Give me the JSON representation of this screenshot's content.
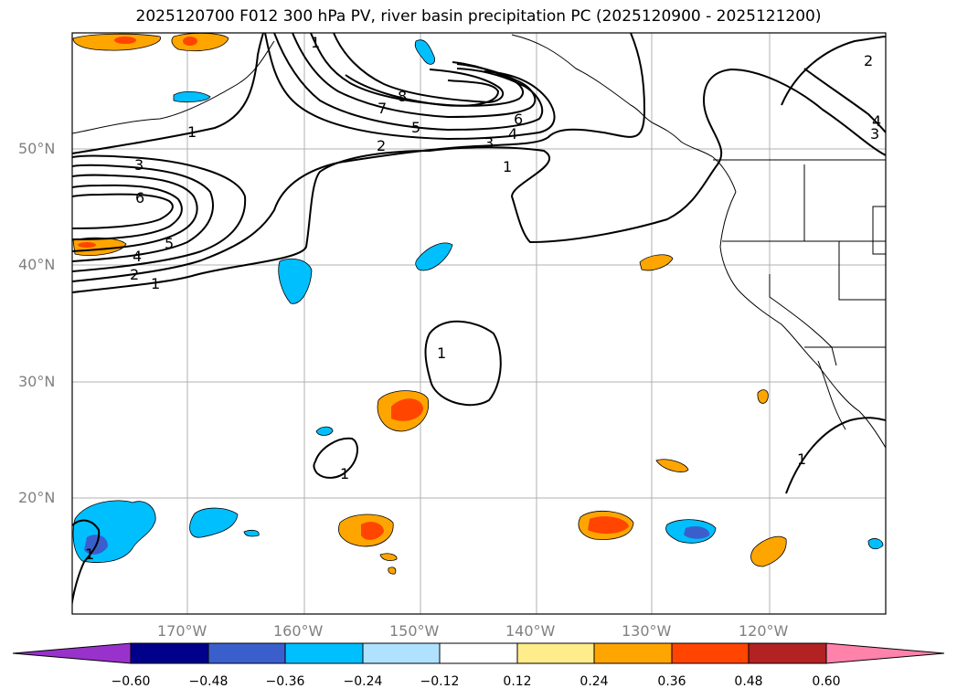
{
  "title": "2025120700 F012 300 hPa PV, river basin precipitation PC (2025120900 - 2025121200)",
  "lat_labels": [
    "50°N",
    "40°N",
    "30°N",
    "20°N"
  ],
  "lon_labels": [
    "170°W",
    "160°W",
    "150°W",
    "140°W",
    "130°W",
    "120°W"
  ],
  "colorbar": {
    "tick_labels": [
      "−0.60",
      "−0.48",
      "−0.36",
      "−0.24",
      "−0.12",
      "0.12",
      "0.24",
      "0.36",
      "0.48",
      "0.60"
    ],
    "colors": [
      "#9932cc",
      "#00008b",
      "#3a5fcd",
      "#00bfff",
      "#b0e2ff",
      "#ffffff",
      "#ffec8b",
      "#ffa500",
      "#ff4500",
      "#b22222",
      "#ff82ab"
    ]
  },
  "contour_labels": [
    "1",
    "2",
    "3",
    "4",
    "5",
    "6",
    "7",
    "8"
  ],
  "pv_contour_labels_shown": [
    "1",
    "1",
    "1",
    "1",
    "2",
    "2",
    "2",
    "3",
    "3",
    "3",
    "4",
    "4",
    "4",
    "5",
    "5",
    "6",
    "6",
    "7",
    "8",
    "1",
    "1",
    "1",
    "1"
  ]
}
